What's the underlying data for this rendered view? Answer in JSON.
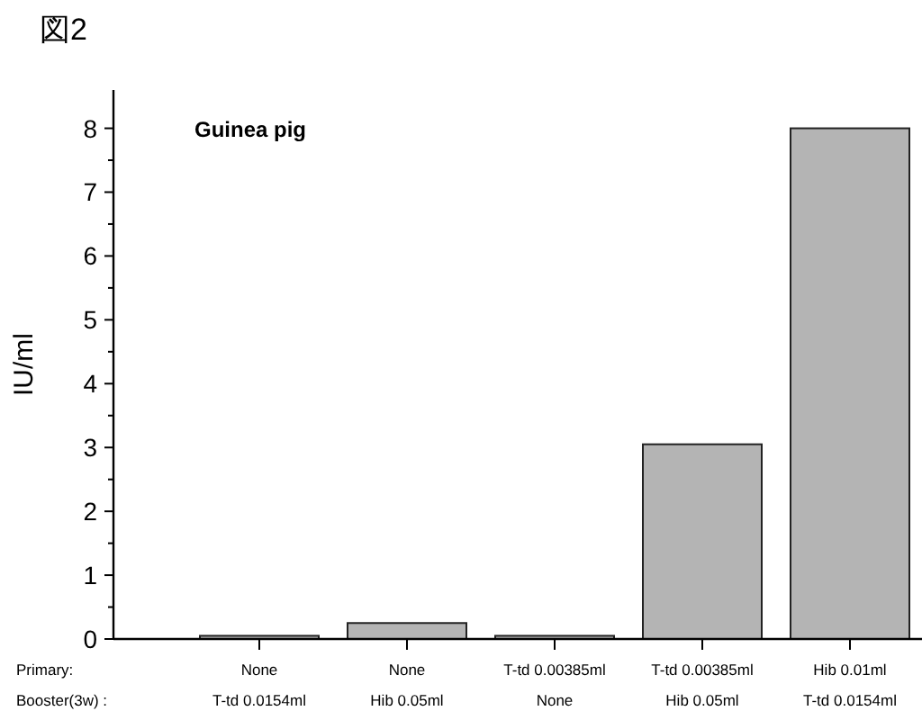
{
  "chart_data": {
    "type": "bar",
    "title": "図2",
    "subtitle": "Guinea pig",
    "ylabel": "IU/ml",
    "categories": [
      "None\nT-td 0.0154ml",
      "None\nHib 0.05ml",
      "T-td 0.00385ml\nNone",
      "T-td 0.00385ml\nHib 0.05ml",
      "Hib 0.01ml\nT-td 0.0154ml"
    ],
    "values": [
      0.05,
      0.25,
      0.05,
      3.05,
      8.0
    ],
    "color": "#b4b4b4",
    "ylim": [
      0,
      8.6
    ],
    "yticks": [
      0,
      1,
      2,
      3,
      4,
      5,
      6,
      7,
      8
    ],
    "annotations": [
      "Primary:",
      "Booster(3w) :"
    ],
    "grid": false
  }
}
